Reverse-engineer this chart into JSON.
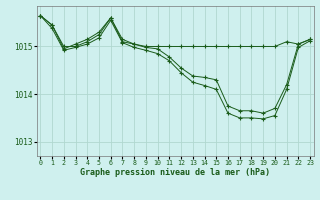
{
  "title": "Graphe pression niveau de la mer (hPa)",
  "bg_color": "#cff0ee",
  "line_color": "#1a5c1a",
  "grid_color": "#b0d8d0",
  "ylim": [
    1012.7,
    1015.85
  ],
  "xlim": [
    -0.3,
    23.3
  ],
  "yticks": [
    1013,
    1014,
    1015
  ],
  "xticks": [
    0,
    1,
    2,
    3,
    4,
    5,
    6,
    7,
    8,
    9,
    10,
    11,
    12,
    13,
    14,
    15,
    16,
    17,
    18,
    19,
    20,
    21,
    22,
    23
  ],
  "series1_x": [
    0,
    1,
    2,
    3,
    4,
    5,
    6,
    7,
    8,
    9,
    10,
    11,
    12,
    13,
    14,
    15,
    16,
    17,
    18,
    19,
    20,
    21,
    22,
    23
  ],
  "series1_y": [
    1015.65,
    1015.45,
    1015.0,
    1015.0,
    1015.1,
    1015.25,
    1015.6,
    1015.1,
    1015.05,
    1015.0,
    1015.0,
    1015.0,
    1015.0,
    1015.0,
    1015.0,
    1015.0,
    1015.0,
    1015.0,
    1015.0,
    1015.0,
    1015.0,
    1015.1,
    1015.05,
    1015.15
  ],
  "series2_x": [
    0,
    1,
    2,
    3,
    4,
    5,
    6,
    7,
    8,
    9,
    10,
    11,
    12,
    13,
    14,
    15,
    16,
    17,
    18,
    19,
    20,
    21,
    22,
    23
  ],
  "series2_y": [
    1015.65,
    1015.45,
    1014.95,
    1015.05,
    1015.15,
    1015.3,
    1015.6,
    1015.15,
    1015.05,
    1014.98,
    1014.95,
    1014.78,
    1014.55,
    1014.38,
    1014.35,
    1014.3,
    1013.75,
    1013.65,
    1013.65,
    1013.6,
    1013.7,
    1014.2,
    1015.05,
    1015.15
  ],
  "series3_x": [
    0,
    1,
    2,
    3,
    4,
    5,
    6,
    7,
    8,
    9,
    10,
    11,
    12,
    13,
    14,
    15,
    16,
    17,
    18,
    19,
    20,
    21,
    22,
    23
  ],
  "series3_y": [
    1015.65,
    1015.38,
    1014.92,
    1014.98,
    1015.05,
    1015.18,
    1015.55,
    1015.08,
    1014.98,
    1014.92,
    1014.85,
    1014.7,
    1014.45,
    1014.25,
    1014.18,
    1014.1,
    1013.6,
    1013.5,
    1013.5,
    1013.48,
    1013.55,
    1014.1,
    1014.98,
    1015.12
  ]
}
